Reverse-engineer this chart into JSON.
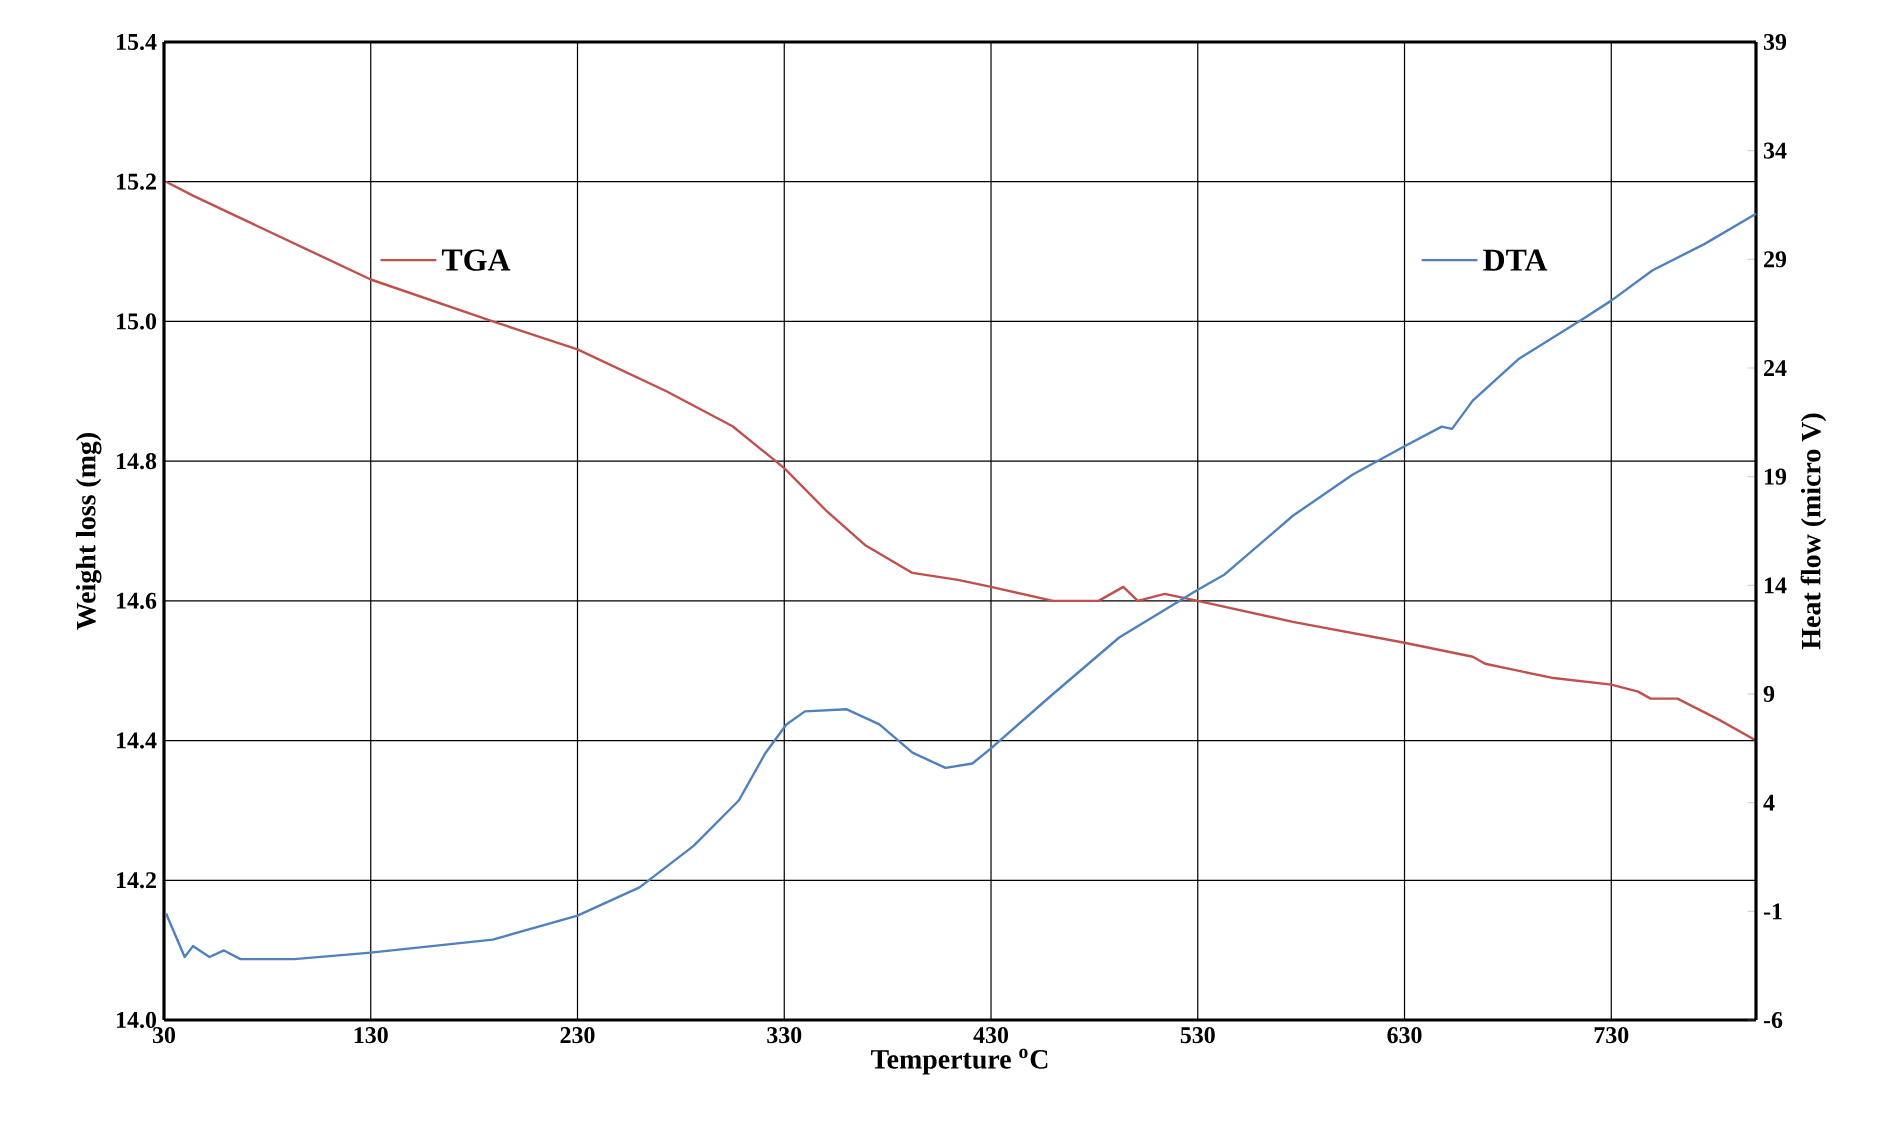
{
  "chart_data": {
    "type": "line",
    "xlabel": "Temperture  $^{o}$C",
    "ylabel": "Weight loss (mg)",
    "y2label": "Heat flow (micro V)",
    "xlim": [
      30,
      800
    ],
    "xticks": [
      30,
      130,
      230,
      330,
      430,
      530,
      630,
      730
    ],
    "ylim": [
      14.0,
      15.4
    ],
    "yticks": [
      {
        "value": 14.0,
        "label": "14.0"
      },
      {
        "value": 14.2,
        "label": "14.2"
      },
      {
        "value": 14.4,
        "label": "14.4"
      },
      {
        "value": 14.6,
        "label": "14.6"
      },
      {
        "value": 14.8,
        "label": "14.8"
      },
      {
        "value": 15.0,
        "label": "15.0"
      },
      {
        "value": 15.2,
        "label": "15.2"
      },
      {
        "value": 15.4,
        "label": "15.4"
      }
    ],
    "y2lim": [
      -6,
      39
    ],
    "y2ticks": [
      -6,
      -1,
      4,
      9,
      14,
      19,
      24,
      29,
      34,
      39
    ],
    "grid": true,
    "legend": "top",
    "line_style": "solid",
    "marker": "none",
    "series": [
      {
        "name": "TGA",
        "color": "#c0504d",
        "x": [
          31,
          44,
          130,
          189,
          230,
          273,
          305,
          330,
          350,
          369,
          392,
          414,
          430,
          460,
          482,
          494,
          501,
          514,
          530,
          576,
          630,
          663,
          669,
          701,
          730,
          743,
          749,
          762,
          782,
          800
        ],
        "values": [
          15.2,
          15.18,
          15.06,
          15.0,
          14.96,
          14.9,
          14.85,
          14.79,
          14.73,
          14.68,
          14.64,
          14.63,
          14.62,
          14.6,
          14.6,
          14.62,
          14.6,
          14.61,
          14.6,
          14.57,
          14.54,
          14.52,
          14.51,
          14.49,
          14.48,
          14.47,
          14.46,
          14.46,
          14.43,
          14.4
        ]
      },
      {
        "name": "DTA",
        "color": "#4f81bd",
        "axis": "y2",
        "x": [
          31,
          40,
          44,
          52,
          59,
          67,
          80,
          93,
          130,
          189,
          230,
          260,
          286,
          308,
          321,
          331,
          340,
          360,
          376,
          392,
          408,
          421,
          430,
          460,
          492,
          530,
          543,
          576,
          605,
          630,
          648,
          653,
          663,
          685,
          717,
          730,
          750,
          775,
          800
        ],
        "values": [
          -1.1,
          -3.1,
          -2.6,
          -3.1,
          -2.8,
          -3.2,
          -3.2,
          -3.2,
          -2.9,
          -2.3,
          -1.2,
          0.1,
          2.0,
          4.1,
          6.3,
          7.6,
          8.2,
          8.3,
          7.6,
          6.3,
          5.6,
          5.8,
          6.5,
          9.0,
          11.6,
          13.8,
          14.5,
          17.2,
          19.1,
          20.4,
          21.3,
          21.2,
          22.5,
          24.4,
          26.3,
          27.1,
          28.5,
          29.7,
          31.1
        ]
      }
    ]
  }
}
